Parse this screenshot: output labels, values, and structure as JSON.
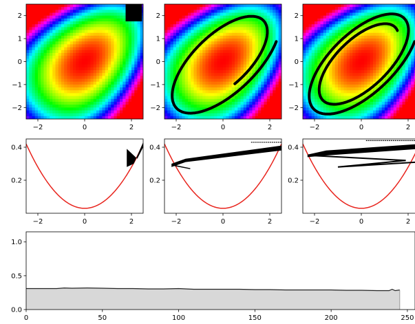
{
  "chart_data": [
    {
      "type": "heatmap",
      "panel": "heatmap-1",
      "colormap": "hsv",
      "xlim": [
        -2.5,
        2.5
      ],
      "ylim": [
        -2.5,
        2.5
      ],
      "xticks": [
        -2,
        0,
        2
      ],
      "yticks": [
        -2,
        -1,
        0,
        1,
        2
      ],
      "overlay": "square point cloud centered near (2, 2)"
    },
    {
      "type": "heatmap",
      "panel": "heatmap-2",
      "colormap": "hsv",
      "xlim": [
        -2.5,
        2.5
      ],
      "ylim": [
        -2.5,
        2.5
      ],
      "xticks": [
        -2,
        0,
        2
      ],
      "yticks": [
        -2,
        -1,
        0,
        1,
        2
      ],
      "overlay": "filament spiraling along a contour"
    },
    {
      "type": "heatmap",
      "panel": "heatmap-3",
      "colormap": "hsv",
      "xlim": [
        -2.5,
        2.5
      ],
      "ylim": [
        -2.5,
        2.5
      ],
      "xticks": [
        -2,
        0,
        2
      ],
      "yticks": [
        -2,
        -1,
        0,
        1,
        2
      ],
      "overlay": "filament spiraling along two contour loops"
    },
    {
      "type": "line",
      "panel": "energy-1",
      "xlim": [
        -2.5,
        2.5
      ],
      "ylim": [
        0,
        0.45
      ],
      "xticks": [
        -2,
        0,
        2
      ],
      "yticks": [
        0.2,
        0.4
      ],
      "curve": {
        "color": "#e8231c",
        "x": [
          -2.5,
          -2,
          -1.5,
          -1,
          -0.5,
          0,
          0.5,
          1,
          1.5,
          2,
          2.5
        ],
        "y": [
          0.42,
          0.27,
          0.16,
          0.09,
          0.045,
          0.03,
          0.045,
          0.09,
          0.16,
          0.27,
          0.42
        ]
      }
    },
    {
      "type": "line",
      "panel": "energy-2",
      "xlim": [
        -2.5,
        2.5
      ],
      "ylim": [
        0,
        0.45
      ],
      "xticks": [
        -2,
        0,
        2
      ],
      "yticks": [
        0.2,
        0.4
      ],
      "curve": {
        "color": "#e8231c",
        "x": [
          -2.5,
          -2,
          -1.5,
          -1,
          -0.5,
          0,
          0.5,
          1,
          1.5,
          2,
          2.5
        ],
        "y": [
          0.42,
          0.27,
          0.16,
          0.09,
          0.045,
          0.03,
          0.045,
          0.09,
          0.16,
          0.27,
          0.42
        ]
      }
    },
    {
      "type": "line",
      "panel": "energy-3",
      "xlim": [
        -2.5,
        2.5
      ],
      "ylim": [
        0,
        0.45
      ],
      "xticks": [
        -2,
        0,
        2
      ],
      "yticks": [
        0.2,
        0.4
      ],
      "curve": {
        "color": "#e8231c",
        "x": [
          -2.5,
          -2,
          -1.5,
          -1,
          -0.5,
          0,
          0.5,
          1,
          1.5,
          2,
          2.5
        ],
        "y": [
          0.42,
          0.27,
          0.16,
          0.09,
          0.045,
          0.03,
          0.045,
          0.09,
          0.16,
          0.27,
          0.42
        ]
      }
    },
    {
      "type": "area",
      "panel": "history",
      "xlim": [
        0,
        255
      ],
      "ylim": [
        0,
        1.15
      ],
      "xticks": [
        0,
        50,
        100,
        150,
        200,
        250
      ],
      "yticks": [
        0.0,
        0.5,
        1.0
      ],
      "fill": "#d8d8d8",
      "x": [
        0,
        10,
        20,
        25,
        30,
        40,
        50,
        60,
        70,
        80,
        90,
        100,
        110,
        120,
        130,
        140,
        150,
        160,
        170,
        180,
        190,
        200,
        210,
        220,
        230,
        238,
        240,
        242,
        245
      ],
      "y": [
        0.31,
        0.31,
        0.31,
        0.32,
        0.315,
        0.32,
        0.315,
        0.31,
        0.31,
        0.305,
        0.305,
        0.31,
        0.3,
        0.3,
        0.3,
        0.3,
        0.295,
        0.295,
        0.29,
        0.29,
        0.29,
        0.29,
        0.285,
        0.285,
        0.28,
        0.28,
        0.3,
        0.28,
        0.29
      ]
    }
  ]
}
